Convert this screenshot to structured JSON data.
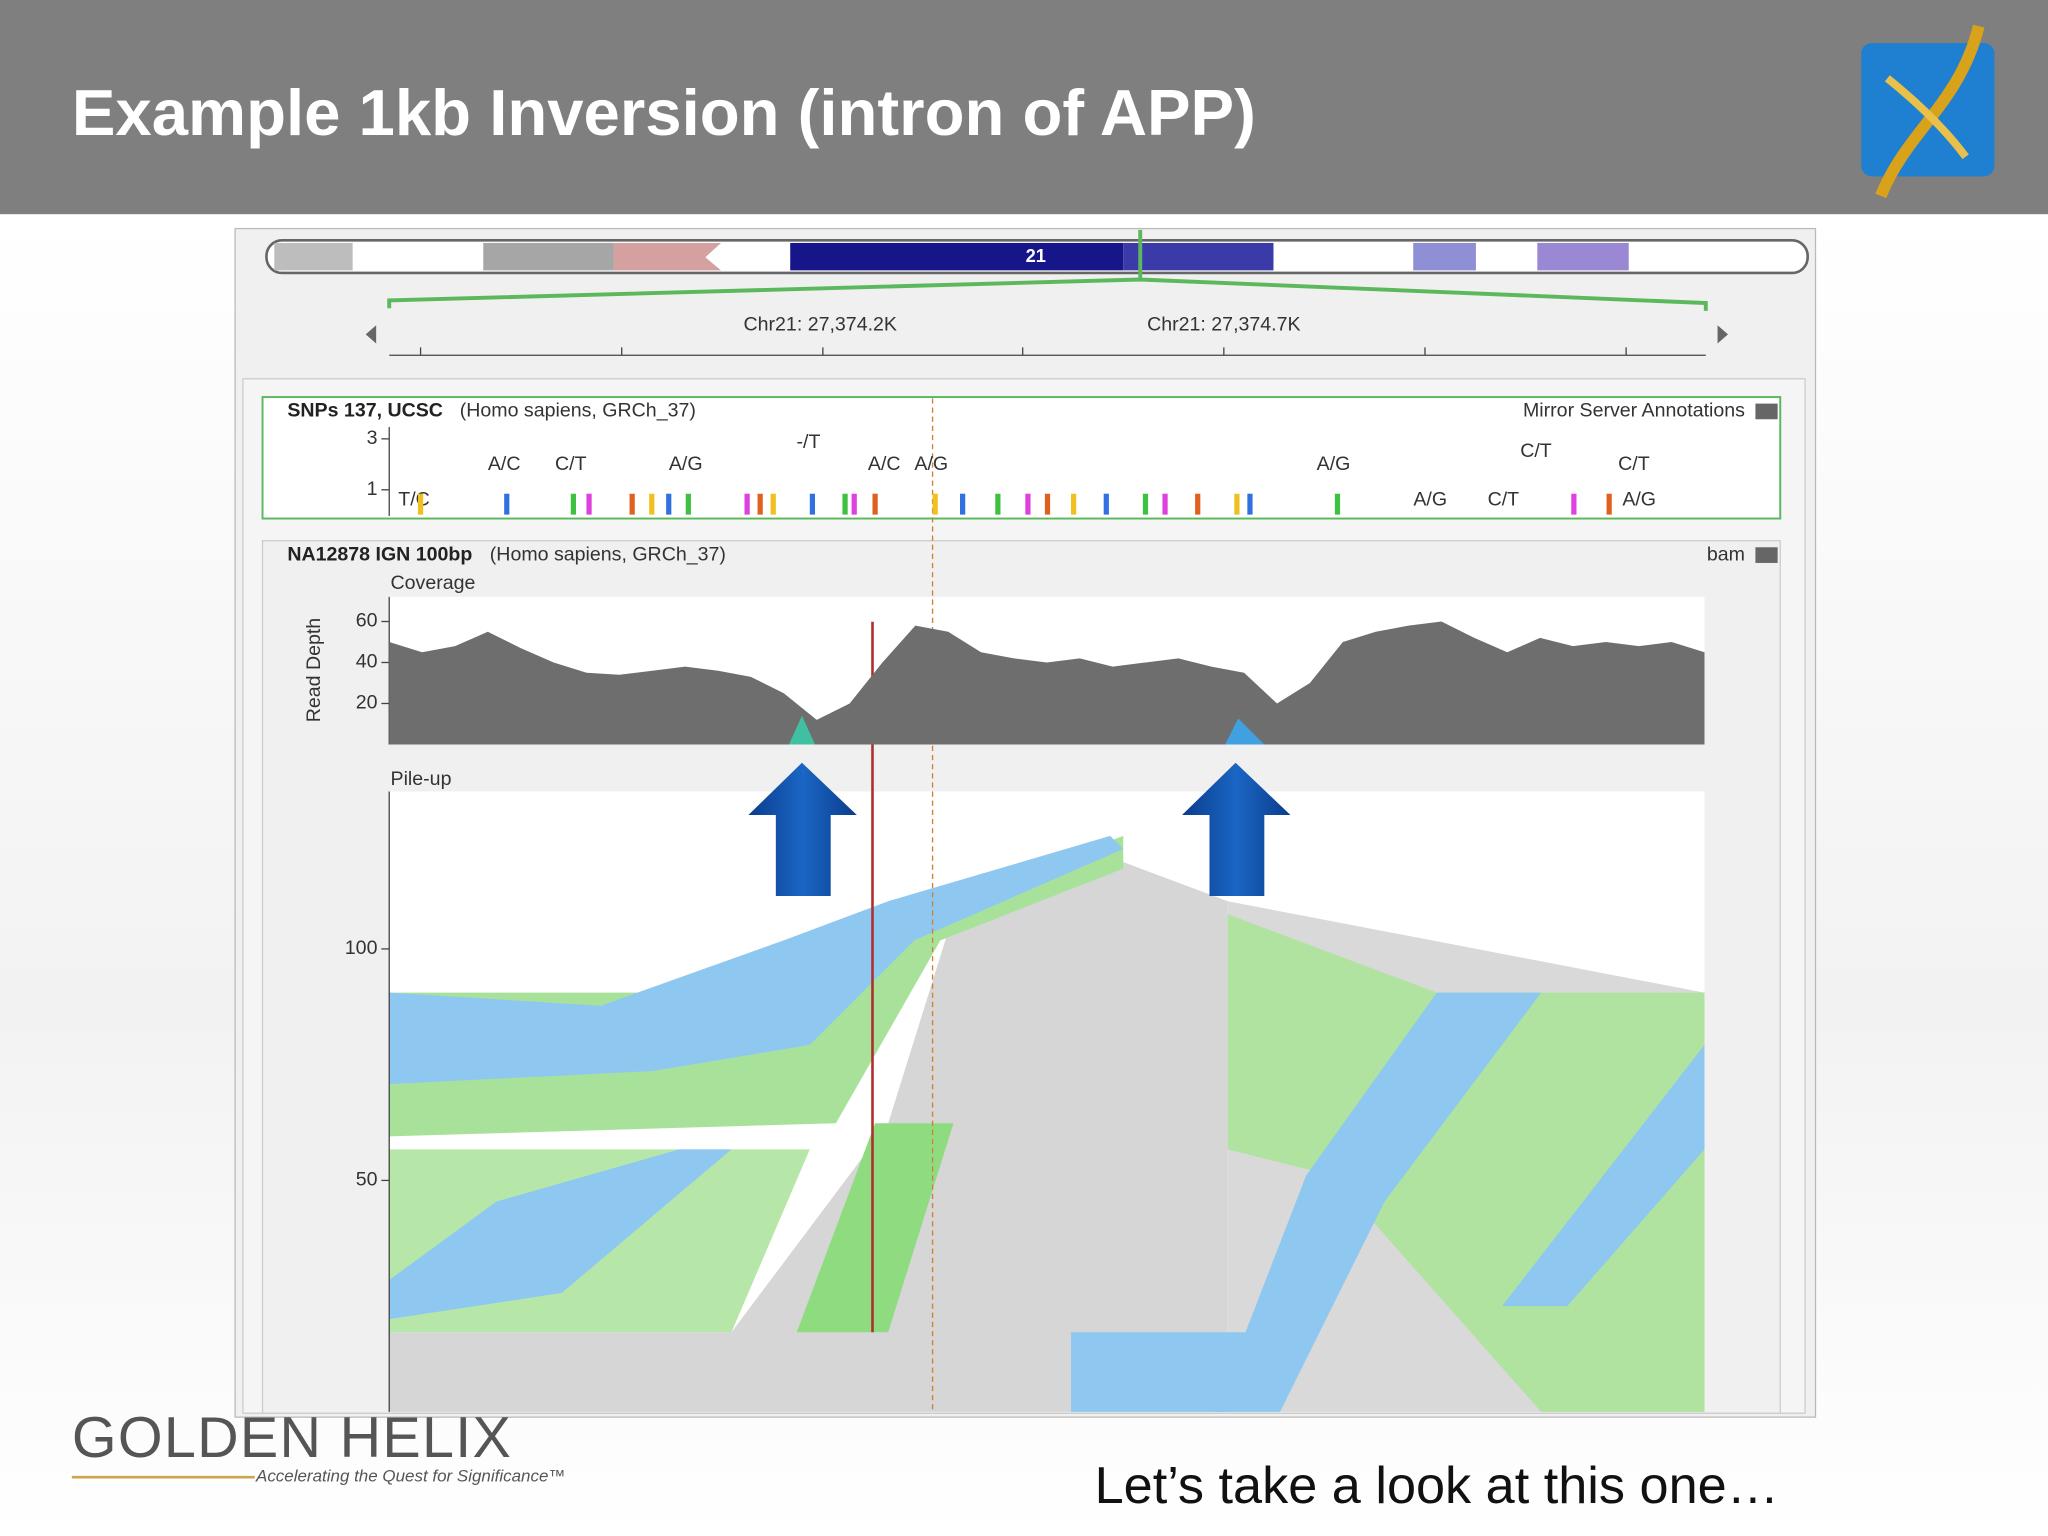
{
  "header": {
    "title": "Example 1kb Inversion (intron of APP)"
  },
  "browser": {
    "chromosome": "21",
    "ruler_labels": [
      "Chr21: 27,374.2K",
      "Chr21: 27,374.7K"
    ],
    "snp_track": {
      "name": "SNPs 137, UCSC",
      "source": "(Homo sapiens, GRCh_37)",
      "group": "Mirror Server Annotations",
      "ylim": [
        0,
        3.8
      ],
      "yticks": [
        1,
        3
      ],
      "labels": [
        "T/C",
        "A/C",
        "C/T",
        "A/G",
        "-/T",
        "A/C",
        "A/G",
        "A/G",
        "A/G",
        "C/T",
        "C/T",
        "C/T",
        "A/G"
      ]
    },
    "bam_track": {
      "name": "NA12878 IGN 100bp",
      "source": "(Homo sapiens, GRCh_37)",
      "group": "bam",
      "coverage": {
        "title": "Coverage",
        "y_label": "Read Depth",
        "ylim": [
          0,
          72
        ],
        "yticks": [
          20,
          40,
          60
        ],
        "values": [
          50,
          45,
          48,
          55,
          47,
          40,
          35,
          34,
          36,
          38,
          36,
          33,
          25,
          12,
          20,
          40,
          58,
          55,
          45,
          42,
          40,
          42,
          38,
          40,
          42,
          38,
          35,
          20,
          30,
          50,
          55,
          58,
          60,
          52,
          45,
          52,
          48,
          50,
          48,
          50,
          45
        ]
      },
      "pileup": {
        "title": "Pile-up",
        "ylim": [
          0,
          134
        ],
        "yticks": [
          50,
          100
        ]
      }
    }
  },
  "logo": {
    "name": "GOLDEN HELIX",
    "tagline": "Accelerating the Quest for Significance™"
  },
  "caption": "Let’s take a look at this one…"
}
